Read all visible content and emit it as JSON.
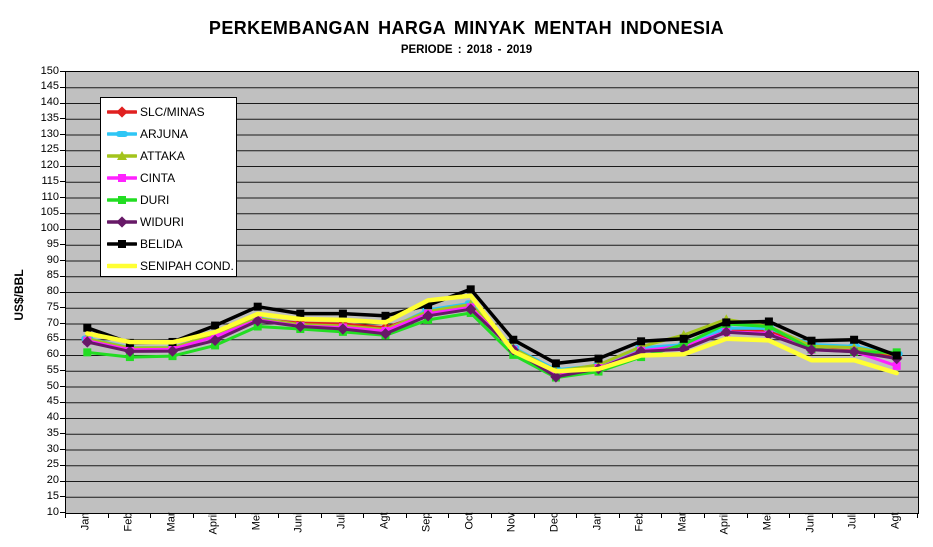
{
  "title": "PERKEMBANGAN HARGA MINYAK MENTAH INDONESIA",
  "subtitle": "PERIODE : 2018 - 2019",
  "y_axis_title": "US$/BBL",
  "chart_data": {
    "type": "line",
    "categories": [
      "Jan",
      "Feb",
      "Mar",
      "April",
      "Mei",
      "Juni",
      "Juli",
      "Agt",
      "Sep",
      "Oct",
      "Nov",
      "Dec",
      "Jan",
      "Feb",
      "Mar",
      "April",
      "Mei",
      "Juni",
      "Juli",
      "Agt"
    ],
    "ylim": [
      10,
      150
    ],
    "ytick_step": 5,
    "grid": true,
    "plot_background": "#c0c0c0",
    "gridline_color": "#1a1a1a",
    "legend_position": "upper-left",
    "series": [
      {
        "name": "SLC/MINAS",
        "color": "#e02020",
        "marker": "diamond",
        "values": [
          65.2,
          62.2,
          62.3,
          66.3,
          71.5,
          70.3,
          70.0,
          68.8,
          73.5,
          75.8,
          62.0,
          54.5,
          56.5,
          62.0,
          63.0,
          68.3,
          68.0,
          62.0,
          61.5,
          59.5
        ]
      },
      {
        "name": "ARJUNA",
        "color": "#2ec6f5",
        "marker": "dash",
        "values": [
          65.4,
          62.5,
          62.5,
          66.6,
          72.0,
          69.6,
          69.0,
          68.0,
          74.5,
          76.6,
          62.5,
          55.5,
          56.8,
          62.5,
          63.4,
          68.7,
          68.6,
          63.5,
          62.9,
          60.5
        ]
      },
      {
        "name": "ATTAKA",
        "color": "#a3c41c",
        "marker": "triangle",
        "values": [
          65.3,
          62.4,
          62.5,
          66.5,
          71.8,
          69.8,
          69.4,
          68.3,
          74.0,
          76.2,
          62.3,
          55.0,
          57.0,
          62.8,
          66.5,
          71.5,
          69.2,
          63.0,
          62.5,
          60.2
        ]
      },
      {
        "name": "CINTA",
        "color": "#ff22ff",
        "marker": "square",
        "values": [
          64.7,
          61.8,
          62.0,
          66.0,
          71.3,
          69.3,
          68.9,
          67.8,
          73.3,
          75.3,
          61.8,
          53.5,
          56.0,
          61.5,
          63.0,
          67.5,
          67.0,
          61.8,
          61.3,
          56.7
        ]
      },
      {
        "name": "DURI",
        "color": "#22dd22",
        "marker": "square",
        "values": [
          61.0,
          59.5,
          59.8,
          63.2,
          69.2,
          68.4,
          67.5,
          66.4,
          71.3,
          73.5,
          60.2,
          53.0,
          54.9,
          59.5,
          63.5,
          70.0,
          69.2,
          62.0,
          61.2,
          61.0
        ]
      },
      {
        "name": "WIDURI",
        "color": "#671967",
        "marker": "diamond",
        "values": [
          64.3,
          61.3,
          61.4,
          64.8,
          71.0,
          69.2,
          68.4,
          66.9,
          72.6,
          74.7,
          61.8,
          53.2,
          55.8,
          61.3,
          62.0,
          67.4,
          66.6,
          61.8,
          61.2,
          59.0
        ]
      },
      {
        "name": "BELIDA",
        "color": "#000000",
        "marker": "square",
        "values": [
          68.8,
          64.0,
          64.3,
          69.5,
          75.5,
          73.3,
          73.3,
          72.6,
          76.0,
          81.0,
          65.0,
          57.5,
          59.0,
          64.5,
          65.3,
          70.5,
          70.8,
          64.7,
          65.0,
          60.0
        ]
      },
      {
        "name": "SENIPAH COND.",
        "color": "#ffff33",
        "marker": "none",
        "values": [
          67.0,
          64.3,
          64.2,
          67.4,
          73.2,
          71.6,
          71.3,
          70.5,
          77.5,
          79.0,
          61.3,
          55.0,
          55.7,
          60.0,
          60.4,
          65.3,
          64.8,
          58.5,
          58.5,
          54.4
        ]
      }
    ]
  }
}
